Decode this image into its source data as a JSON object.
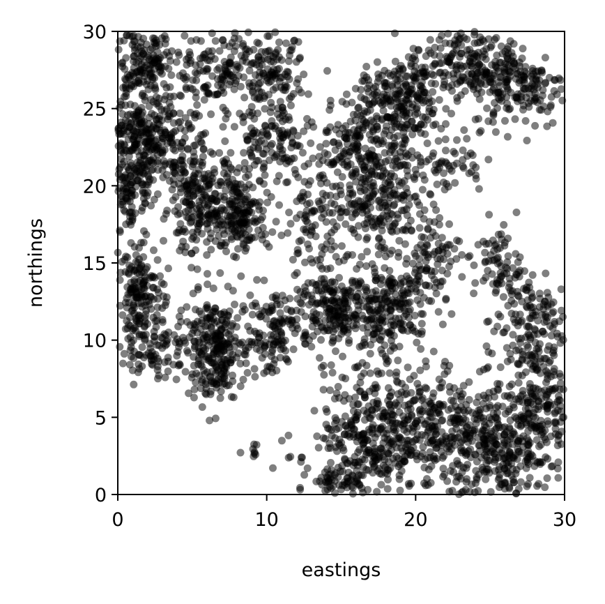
{
  "chart_data": {
    "type": "scatter",
    "title": "",
    "xlabel": "eastings",
    "ylabel": "northings",
    "xlim": [
      0,
      30
    ],
    "ylim": [
      0,
      30
    ],
    "x_ticks": [
      "0",
      "10",
      "20",
      "30"
    ],
    "y_ticks": [
      "0",
      "5",
      "10",
      "15",
      "20",
      "25",
      "30"
    ],
    "grid": false,
    "marker_color": "#000000",
    "marker_opacity": 0.5,
    "clusters": [
      {
        "cx": 2.0,
        "cy": 23.0,
        "sx": 1.6,
        "sy": 1.4,
        "n": 320
      },
      {
        "cx": 1.5,
        "cy": 28.0,
        "sx": 1.3,
        "sy": 1.5,
        "n": 200
      },
      {
        "cx": 0.8,
        "cy": 19.5,
        "sx": 0.8,
        "sy": 1.5,
        "n": 120
      },
      {
        "cx": 5.5,
        "cy": 19.0,
        "sx": 1.3,
        "sy": 1.8,
        "n": 230
      },
      {
        "cx": 8.2,
        "cy": 18.2,
        "sx": 1.0,
        "sy": 1.2,
        "n": 170
      },
      {
        "cx": 7.0,
        "cy": 27.5,
        "sx": 1.6,
        "sy": 1.5,
        "n": 160
      },
      {
        "cx": 10.5,
        "cy": 27.0,
        "sx": 1.0,
        "sy": 1.3,
        "n": 120
      },
      {
        "cx": 10.2,
        "cy": 22.5,
        "sx": 1.3,
        "sy": 1.3,
        "n": 110
      },
      {
        "cx": 1.5,
        "cy": 13.2,
        "sx": 0.8,
        "sy": 1.3,
        "n": 150
      },
      {
        "cx": 2.5,
        "cy": 9.5,
        "sx": 1.2,
        "sy": 1.0,
        "n": 100
      },
      {
        "cx": 6.5,
        "cy": 9.5,
        "sx": 1.0,
        "sy": 1.6,
        "n": 260
      },
      {
        "cx": 10.0,
        "cy": 10.5,
        "sx": 1.0,
        "sy": 1.5,
        "n": 120
      },
      {
        "cx": 15.0,
        "cy": 12.0,
        "sx": 1.7,
        "sy": 1.5,
        "n": 280
      },
      {
        "cx": 18.5,
        "cy": 12.0,
        "sx": 1.5,
        "sy": 1.5,
        "n": 170
      },
      {
        "cx": 13.0,
        "cy": 18.0,
        "sx": 1.3,
        "sy": 2.0,
        "n": 110
      },
      {
        "cx": 17.5,
        "cy": 19.5,
        "sx": 1.4,
        "sy": 1.8,
        "n": 240
      },
      {
        "cx": 16.5,
        "cy": 23.0,
        "sx": 1.5,
        "sy": 1.3,
        "n": 150
      },
      {
        "cx": 19.0,
        "cy": 25.5,
        "sx": 1.4,
        "sy": 1.4,
        "n": 210
      },
      {
        "cx": 23.0,
        "cy": 27.8,
        "sx": 1.7,
        "sy": 1.3,
        "n": 200
      },
      {
        "cx": 27.0,
        "cy": 26.5,
        "sx": 1.6,
        "sy": 1.4,
        "n": 180
      },
      {
        "cx": 22.0,
        "cy": 21.5,
        "sx": 1.3,
        "sy": 1.0,
        "n": 60
      },
      {
        "cx": 21.0,
        "cy": 15.5,
        "sx": 1.0,
        "sy": 1.3,
        "n": 90
      },
      {
        "cx": 25.5,
        "cy": 15.0,
        "sx": 0.8,
        "sy": 1.2,
        "n": 60
      },
      {
        "cx": 27.5,
        "cy": 11.0,
        "sx": 1.3,
        "sy": 2.0,
        "n": 170
      },
      {
        "cx": 17.0,
        "cy": 4.0,
        "sx": 1.6,
        "sy": 2.0,
        "n": 310
      },
      {
        "cx": 21.0,
        "cy": 4.5,
        "sx": 1.5,
        "sy": 2.0,
        "n": 230
      },
      {
        "cx": 25.5,
        "cy": 3.0,
        "sx": 1.8,
        "sy": 2.0,
        "n": 360
      },
      {
        "cx": 28.5,
        "cy": 5.5,
        "sx": 1.0,
        "sy": 2.0,
        "n": 150
      },
      {
        "cx": 15.0,
        "cy": 0.9,
        "sx": 1.0,
        "sy": 0.5,
        "n": 60
      },
      {
        "cx": 9.0,
        "cy": 3.0,
        "sx": 0.4,
        "sy": 0.5,
        "n": 8
      },
      {
        "cx": 11.5,
        "cy": 2.5,
        "sx": 0.7,
        "sy": 1.0,
        "n": 8
      }
    ]
  }
}
